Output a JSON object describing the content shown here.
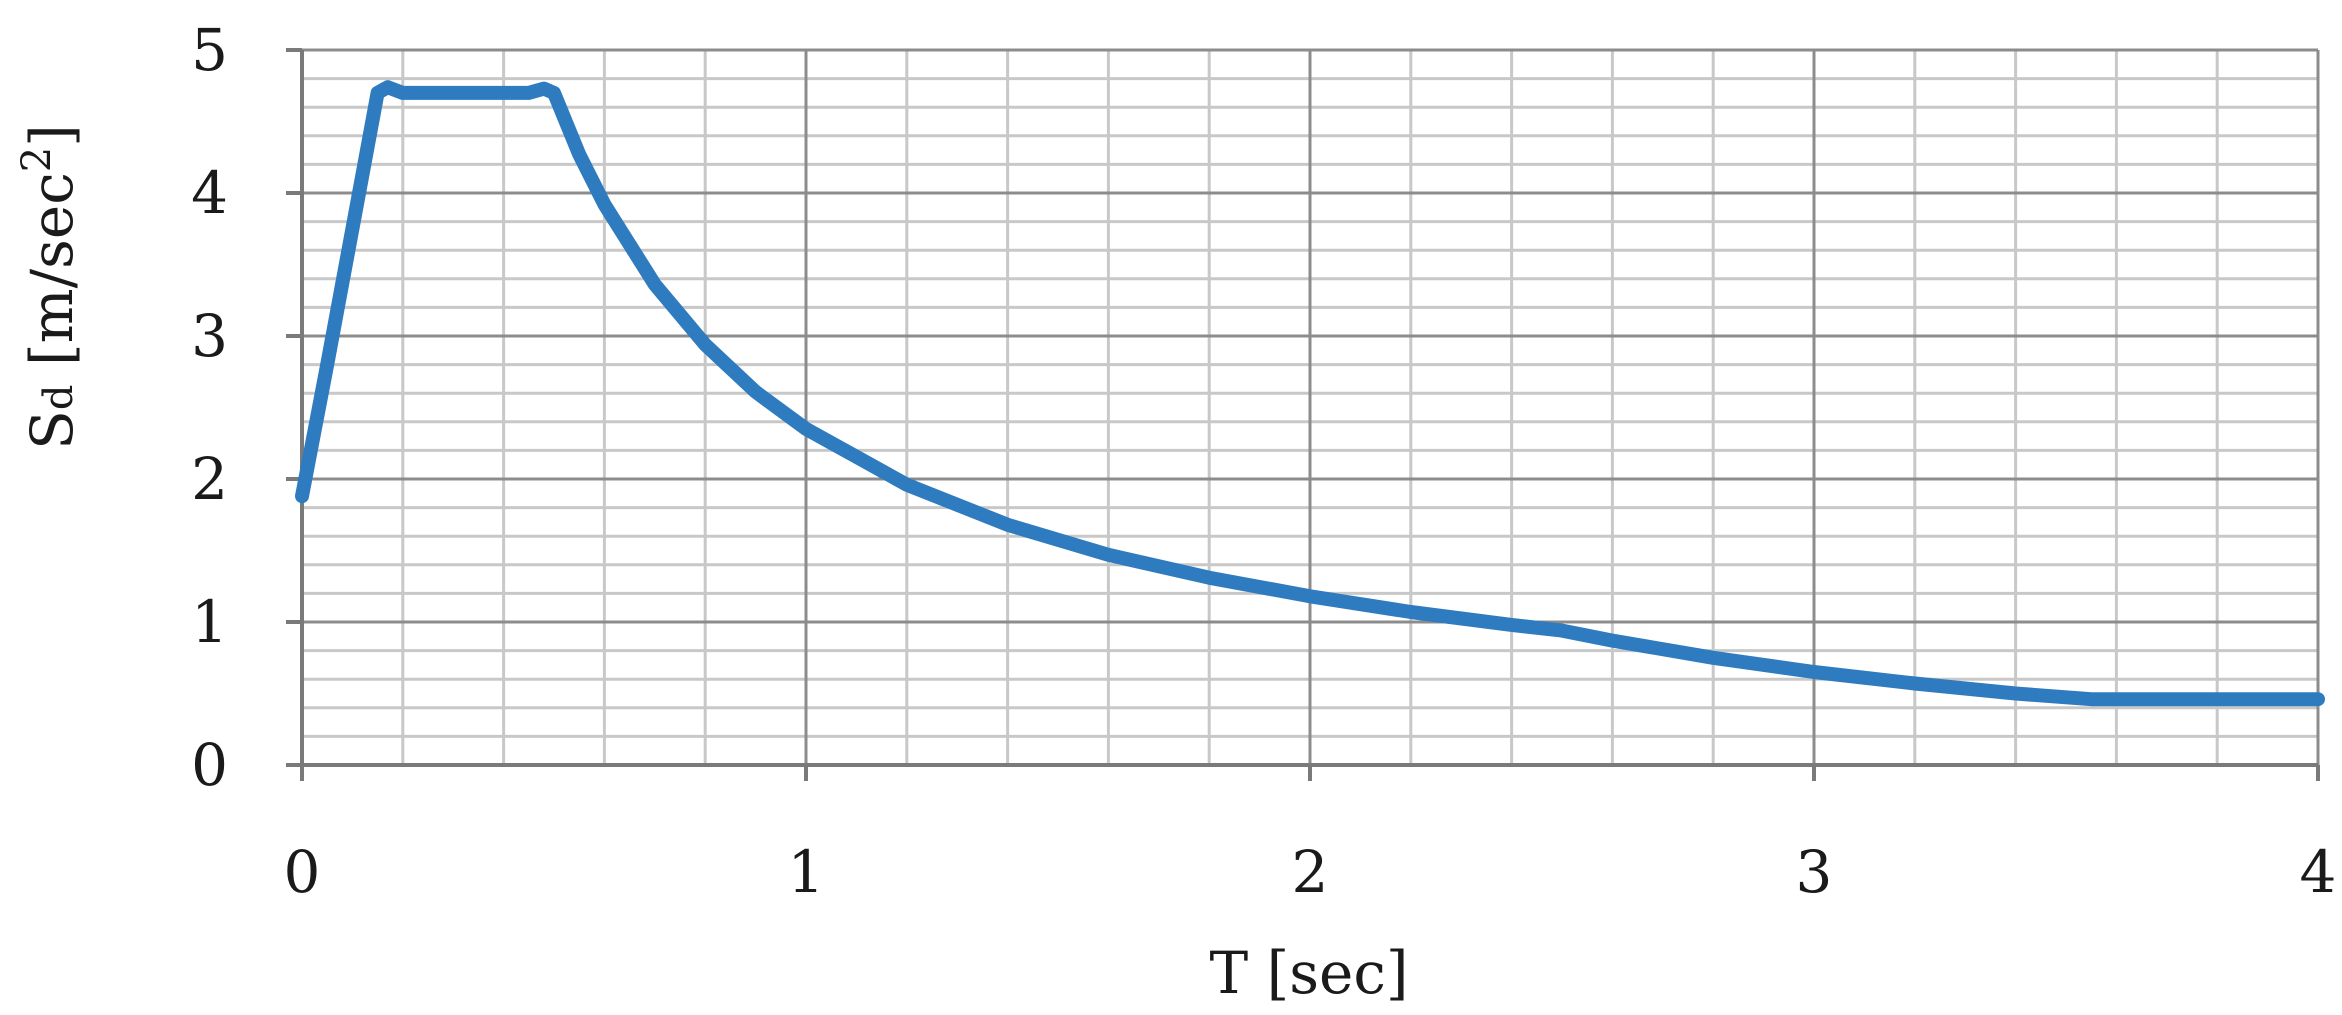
{
  "chart_data": {
    "type": "line",
    "xlabel": "T [sec]",
    "ylabel": {
      "base": "S",
      "subscript": "d",
      "unit_open": " [m/sec",
      "superscript": "2",
      "unit_close": "]"
    },
    "xlim": [
      0,
      4
    ],
    "ylim": [
      0,
      5
    ],
    "xticks": [
      "0",
      "1",
      "2",
      "3",
      "4"
    ],
    "yticks": [
      "0",
      "1",
      "2",
      "3",
      "4",
      "5"
    ],
    "grid": true,
    "minor_grid": {
      "x_step": 0.2,
      "y_step": 0.2
    },
    "legend": "none",
    "series": [
      {
        "color": "#2e7bbf",
        "x": [
          0,
          0.05,
          0.1,
          0.15,
          0.17,
          0.2,
          0.3,
          0.4,
          0.45,
          0.48,
          0.5,
          0.55,
          0.6,
          0.7,
          0.8,
          0.9,
          1.0,
          1.2,
          1.4,
          1.6,
          1.8,
          2.0,
          2.2,
          2.4,
          2.5,
          2.6,
          2.8,
          3.0,
          3.2,
          3.4,
          3.55,
          3.7,
          3.85,
          4.0
        ],
        "y": [
          1.88,
          2.8,
          3.75,
          4.7,
          4.74,
          4.7,
          4.7,
          4.7,
          4.7,
          4.73,
          4.7,
          4.27,
          3.92,
          3.36,
          2.94,
          2.61,
          2.35,
          1.96,
          1.68,
          1.47,
          1.31,
          1.18,
          1.07,
          0.98,
          0.94,
          0.87,
          0.75,
          0.65,
          0.57,
          0.5,
          0.46,
          0.46,
          0.46,
          0.46
        ]
      }
    ]
  }
}
